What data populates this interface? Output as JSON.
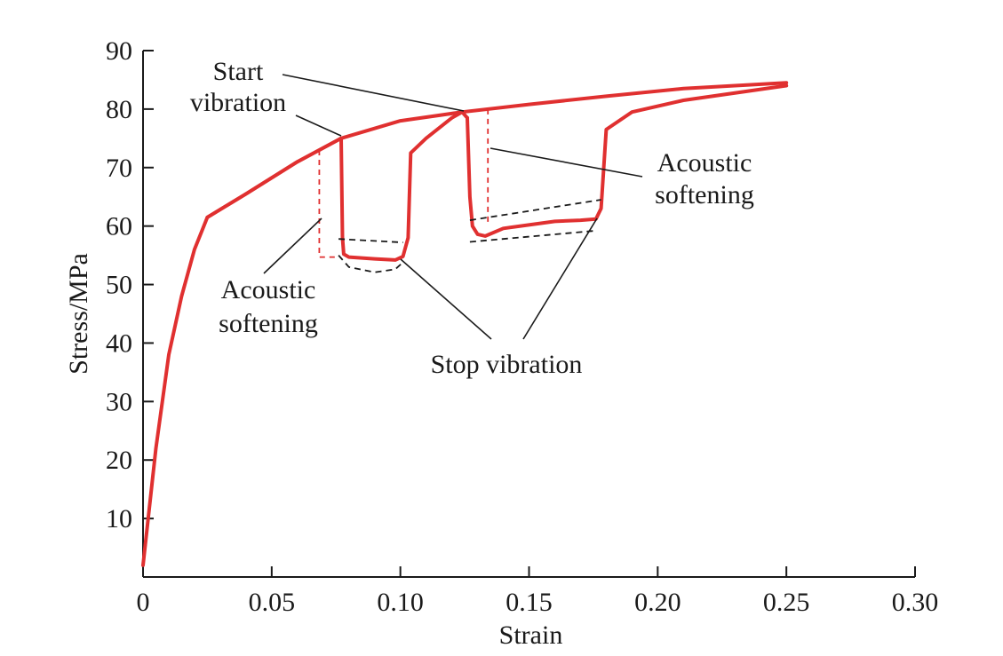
{
  "chart_data": {
    "type": "line",
    "title": "",
    "xlabel": "Strain",
    "ylabel": "Stress/MPa",
    "xlim": [
      0,
      0.3
    ],
    "ylim": [
      0,
      90
    ],
    "x_ticks": [
      0,
      0.05,
      0.1,
      0.15,
      0.2,
      0.25,
      0.3
    ],
    "x_tick_labels": [
      "0",
      "0.05",
      "0.10",
      "0.15",
      "0.20",
      "0.25",
      "0.30"
    ],
    "y_ticks": [
      10,
      20,
      30,
      40,
      50,
      60,
      70,
      80,
      90
    ],
    "y_tick_labels": [
      "10",
      "20",
      "30",
      "40",
      "50",
      "60",
      "70",
      "80",
      "90"
    ],
    "grid": false,
    "legend": "none",
    "colors": {
      "curve": "#e03030",
      "dashed": "#1a1a1a",
      "text": "#1a1a1a"
    },
    "series": [
      {
        "style": "red-line",
        "points": [
          [
            0,
            2
          ],
          [
            0.005,
            22
          ],
          [
            0.01,
            38
          ],
          [
            0.015,
            48
          ],
          [
            0.02,
            56
          ],
          [
            0.025,
            61.5
          ],
          [
            0.04,
            65.5
          ],
          [
            0.06,
            71
          ],
          [
            0.077,
            75
          ]
        ]
      },
      {
        "style": "red-line",
        "points": [
          [
            0.077,
            75
          ],
          [
            0.0775,
            58
          ],
          [
            0.078,
            55.2
          ],
          [
            0.08,
            54.7
          ],
          [
            0.09,
            54.4
          ],
          [
            0.098,
            54.2
          ],
          [
            0.101,
            54.8
          ],
          [
            0.103,
            58
          ],
          [
            0.104,
            72.5
          ],
          [
            0.11,
            75
          ],
          [
            0.12,
            78.5
          ],
          [
            0.124,
            79.5
          ],
          [
            0.126,
            78.5
          ]
        ]
      },
      {
        "style": "red-line",
        "points": [
          [
            0.126,
            78.5
          ],
          [
            0.127,
            65
          ],
          [
            0.128,
            60
          ],
          [
            0.13,
            58.6
          ],
          [
            0.133,
            58.3
          ],
          [
            0.14,
            59.6
          ],
          [
            0.16,
            60.8
          ],
          [
            0.17,
            61
          ],
          [
            0.176,
            61.2
          ],
          [
            0.178,
            63
          ],
          [
            0.18,
            76.5
          ],
          [
            0.19,
            79.5
          ],
          [
            0.21,
            81.5
          ],
          [
            0.25,
            84
          ]
        ]
      },
      {
        "style": "red-line",
        "points": [
          [
            0.025,
            61.5
          ],
          [
            0.04,
            65.5
          ],
          [
            0.06,
            71
          ],
          [
            0.077,
            75
          ],
          [
            0.1,
            78
          ],
          [
            0.124,
            79.5
          ],
          [
            0.15,
            80.8
          ],
          [
            0.18,
            82.2
          ],
          [
            0.21,
            83.5
          ],
          [
            0.25,
            84.5
          ]
        ]
      },
      {
        "style": "black-dashed",
        "points": [
          [
            0.076,
            57.8
          ],
          [
            0.101,
            57.2
          ]
        ]
      },
      {
        "style": "black-dashed",
        "points": [
          [
            0.076,
            55
          ],
          [
            0.08,
            53
          ],
          [
            0.09,
            52.1
          ],
          [
            0.098,
            52.6
          ],
          [
            0.101,
            53.8
          ]
        ]
      },
      {
        "style": "black-dashed",
        "points": [
          [
            0.127,
            61
          ],
          [
            0.178,
            64.5
          ]
        ]
      },
      {
        "style": "black-dashed",
        "points": [
          [
            0.127,
            57.3
          ],
          [
            0.176,
            59.2
          ]
        ]
      },
      {
        "style": "red-dashed",
        "points": [
          [
            0.0685,
            73
          ],
          [
            0.0685,
            54.7
          ],
          [
            0.0755,
            54.7
          ]
        ]
      },
      {
        "style": "red-dashed",
        "points": [
          [
            0.134,
            80
          ],
          [
            0.134,
            60.5
          ]
        ]
      }
    ],
    "annotations": [
      {
        "lines": [
          "Start",
          "vibration"
        ]
      },
      {
        "lines": [
          "Acoustic",
          "softening"
        ]
      },
      {
        "lines": [
          "Acoustic",
          "softening"
        ]
      },
      {
        "lines": [
          "Stop vibration"
        ]
      }
    ]
  }
}
